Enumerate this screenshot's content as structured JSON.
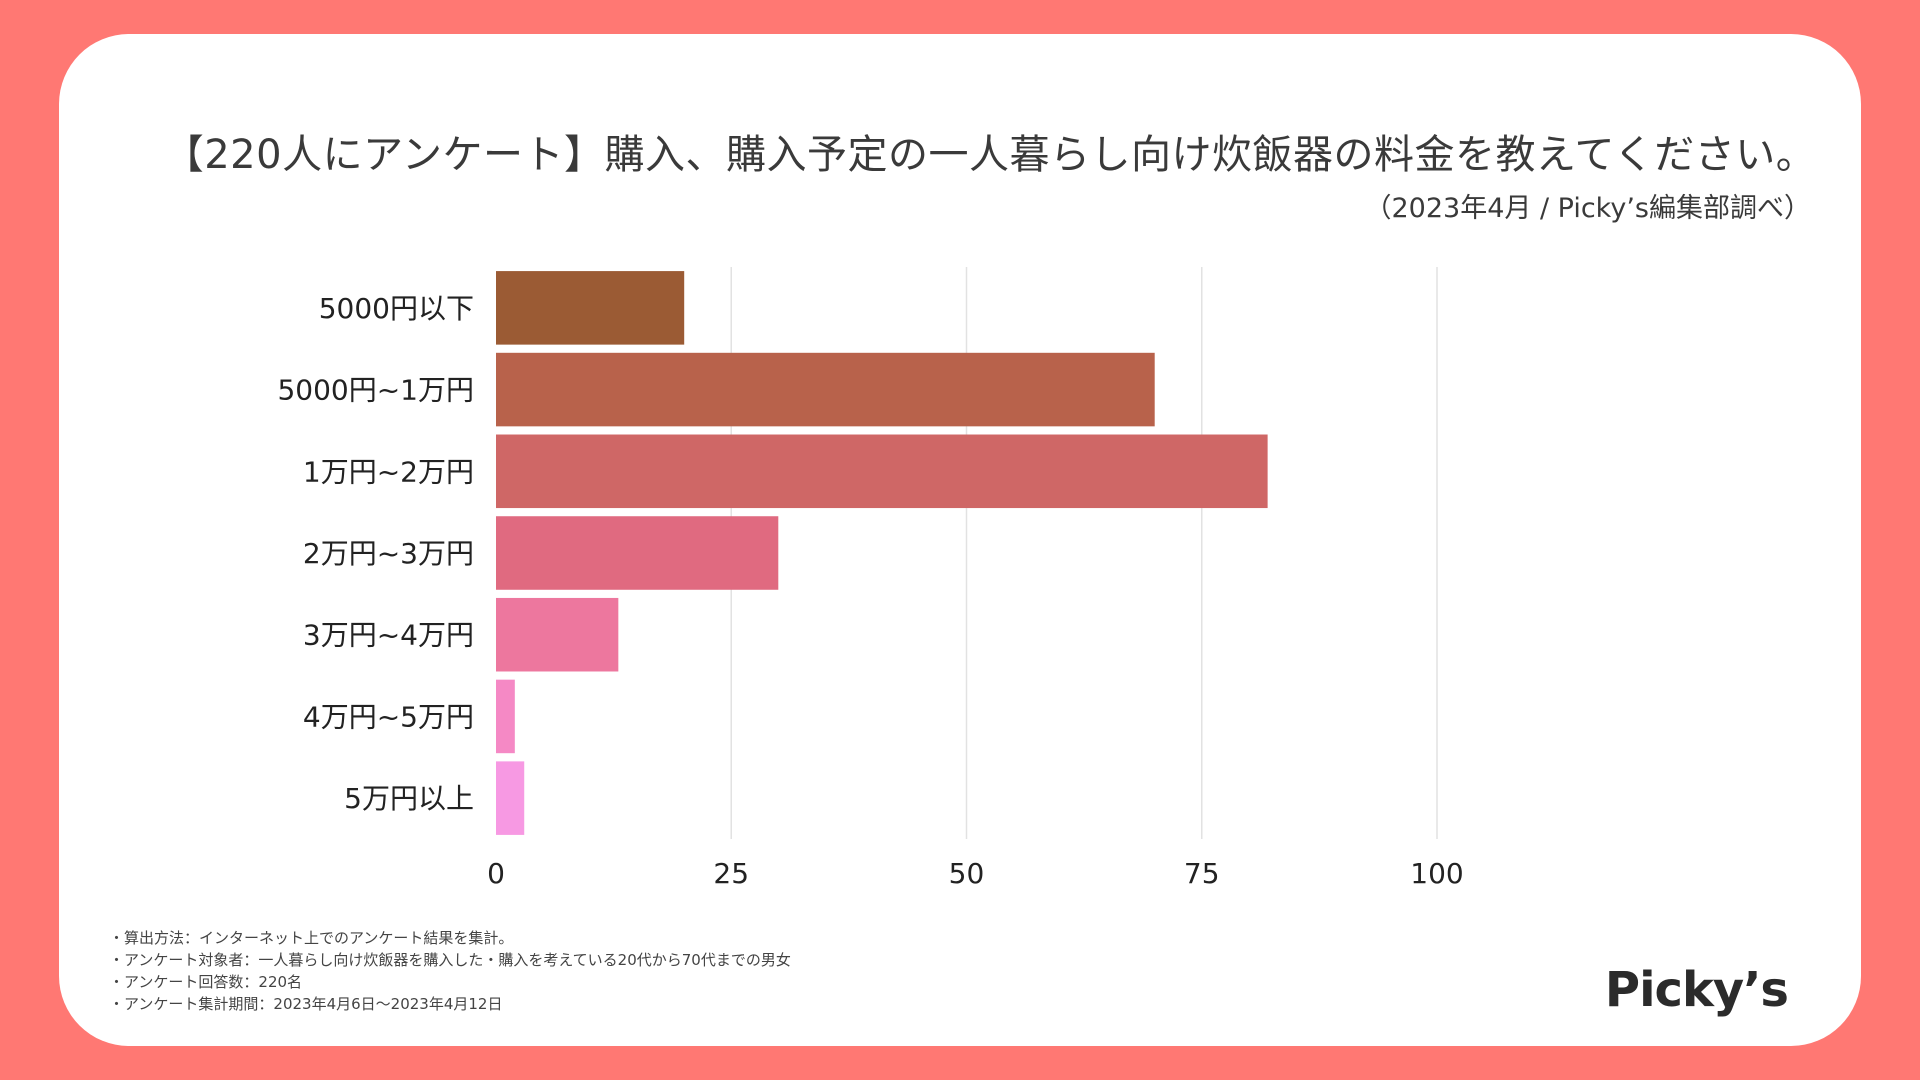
{
  "header": {
    "title": "【220人にアンケート】購入、購入予定の一人暮らし向け炊飯器の料金を教えてください。",
    "subtitle": "（2023年4月 / Picky’s編集部調べ）"
  },
  "chart_data": {
    "type": "bar",
    "orientation": "horizontal",
    "title": "【220人にアンケート】購入、購入予定の一人暮らし向け炊飯器の料金を教えてください。",
    "xlabel": "",
    "ylabel": "",
    "categories": [
      "5000円以下",
      "5000円~1万円",
      "1万円~2万円",
      "2万円~3万円",
      "3万円~4万円",
      "4万円~5万円",
      "5万円以上"
    ],
    "values": [
      20,
      70,
      82,
      30,
      13,
      2,
      3
    ],
    "colors": [
      "#9b5b34",
      "#b8624b",
      "#cf6766",
      "#e06a80",
      "#ed779e",
      "#f589c5",
      "#f799e3"
    ],
    "xlim": [
      0,
      100
    ],
    "xticks": [
      0,
      25,
      50,
      75,
      100
    ],
    "grid": true,
    "legend": "none"
  },
  "notes": [
    "・算出方法：インターネット上でのアンケート結果を集計。",
    "・アンケート対象者：一人暮らし向け炊飯器を購入した・購入を考えている20代から70代までの男女",
    "・アンケート回答数：220名",
    "・アンケート集計期間：2023年4月6日〜2023年4月12日"
  ],
  "brand": {
    "logo_text": "Picky’s",
    "background": "#ff7873",
    "card": "#ffffff",
    "text": "#3a3a3a"
  }
}
